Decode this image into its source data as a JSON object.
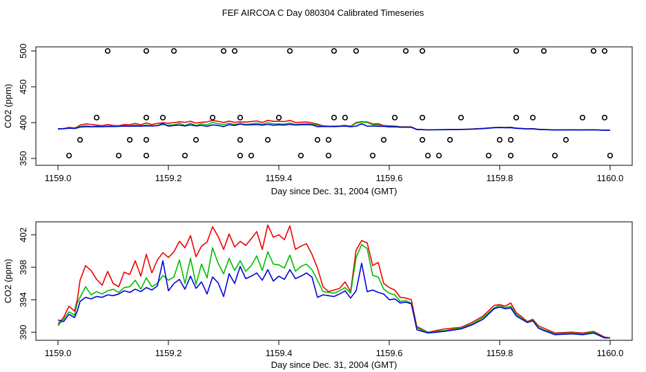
{
  "title": "FEF AIRCOA C  Day 080304  Calibrated Timeseries",
  "colors": {
    "red": "#ee0000",
    "green": "#00bb00",
    "blue": "#0000dd",
    "axis": "#000000"
  },
  "chart_data": [
    {
      "type": "scatter+line",
      "xlabel": "Day since Dec. 31, 2004 (GMT)",
      "ylabel": "CO2 (ppm)",
      "xlim": [
        1159.0,
        1160.0
      ],
      "ylim": [
        350,
        500
      ],
      "xticks": [
        1159.0,
        1159.2,
        1159.4,
        1159.6,
        1159.8,
        1160.0
      ],
      "xtick_labels": [
        "1159.0",
        "1159.2",
        "1159.4",
        "1159.6",
        "1159.8",
        "1160.0"
      ],
      "yticks": [
        350,
        400,
        450,
        500
      ],
      "ytick_labels": [
        "350",
        "400",
        "450",
        "500"
      ],
      "points": [
        [
          1159.09,
          500
        ],
        [
          1159.16,
          500
        ],
        [
          1159.21,
          500
        ],
        [
          1159.3,
          500
        ],
        [
          1159.32,
          500
        ],
        [
          1159.42,
          500
        ],
        [
          1159.5,
          500
        ],
        [
          1159.54,
          500
        ],
        [
          1159.63,
          500
        ],
        [
          1159.66,
          500
        ],
        [
          1159.83,
          500
        ],
        [
          1159.88,
          500
        ],
        [
          1159.97,
          500
        ],
        [
          1159.99,
          500
        ],
        [
          1159.07,
          407
        ],
        [
          1159.16,
          407
        ],
        [
          1159.19,
          407
        ],
        [
          1159.28,
          407
        ],
        [
          1159.33,
          407
        ],
        [
          1159.4,
          407
        ],
        [
          1159.5,
          407
        ],
        [
          1159.52,
          407
        ],
        [
          1159.61,
          407
        ],
        [
          1159.66,
          407
        ],
        [
          1159.73,
          407
        ],
        [
          1159.83,
          407
        ],
        [
          1159.86,
          407
        ],
        [
          1159.95,
          407
        ],
        [
          1159.99,
          407
        ],
        [
          1159.04,
          376
        ],
        [
          1159.13,
          376
        ],
        [
          1159.16,
          376
        ],
        [
          1159.25,
          376
        ],
        [
          1159.33,
          376
        ],
        [
          1159.38,
          376
        ],
        [
          1159.47,
          376
        ],
        [
          1159.49,
          376
        ],
        [
          1159.59,
          376
        ],
        [
          1159.66,
          376
        ],
        [
          1159.71,
          376
        ],
        [
          1159.8,
          376
        ],
        [
          1159.82,
          376
        ],
        [
          1159.92,
          376
        ],
        [
          1159.02,
          354
        ],
        [
          1159.11,
          354
        ],
        [
          1159.16,
          354
        ],
        [
          1159.23,
          354
        ],
        [
          1159.33,
          354
        ],
        [
          1159.35,
          354
        ],
        [
          1159.44,
          354
        ],
        [
          1159.49,
          354
        ],
        [
          1159.57,
          354
        ],
        [
          1159.67,
          354
        ],
        [
          1159.69,
          354
        ],
        [
          1159.78,
          354
        ],
        [
          1159.82,
          354
        ],
        [
          1159.9,
          354
        ],
        [
          1160.0,
          354
        ]
      ],
      "series_ref": "shared"
    },
    {
      "type": "line",
      "xlabel": "Day since Dec. 31, 2004 (GMT)",
      "ylabel": "CO2 (ppm)",
      "xlim": [
        1159.0,
        1160.0
      ],
      "ylim": [
        389.0,
        403.6
      ],
      "xticks": [
        1159.0,
        1159.2,
        1159.4,
        1159.6,
        1159.8,
        1160.0
      ],
      "xtick_labels": [
        "1159.0",
        "1159.2",
        "1159.4",
        "1159.6",
        "1159.8",
        "1160.0"
      ],
      "yticks": [
        390,
        394,
        398,
        402
      ],
      "ytick_labels": [
        "390",
        "394",
        "398",
        "402"
      ],
      "series_ref": "shared"
    }
  ],
  "series": [
    {
      "name": "red",
      "x": [
        1159.0,
        1159.01,
        1159.02,
        1159.03,
        1159.035,
        1159.04,
        1159.05,
        1159.06,
        1159.07,
        1159.08,
        1159.09,
        1159.1,
        1159.11,
        1159.12,
        1159.13,
        1159.14,
        1159.15,
        1159.16,
        1159.17,
        1159.18,
        1159.19,
        1159.2,
        1159.21,
        1159.22,
        1159.23,
        1159.24,
        1159.25,
        1159.26,
        1159.27,
        1159.28,
        1159.29,
        1159.3,
        1159.31,
        1159.32,
        1159.33,
        1159.34,
        1159.35,
        1159.36,
        1159.37,
        1159.38,
        1159.39,
        1159.4,
        1159.41,
        1159.42,
        1159.43,
        1159.44,
        1159.45,
        1159.46,
        1159.47,
        1159.48,
        1159.49,
        1159.5,
        1159.51,
        1159.52,
        1159.53,
        1159.54,
        1159.55,
        1159.56,
        1159.57,
        1159.58,
        1159.59,
        1159.6,
        1159.61,
        1159.62,
        1159.63,
        1159.64,
        1159.65,
        1159.67,
        1159.7,
        1159.73,
        1159.75,
        1159.77,
        1159.79,
        1159.8,
        1159.81,
        1159.82,
        1159.83,
        1159.84,
        1159.85,
        1159.86,
        1159.87,
        1159.88,
        1159.9,
        1159.93,
        1159.95,
        1159.97,
        1159.99,
        1160.0
      ],
      "y": [
        391.0,
        391.8,
        393.2,
        392.6,
        394.0,
        396.4,
        398.2,
        397.6,
        396.5,
        395.8,
        397.5,
        396.0,
        395.6,
        397.4,
        397.1,
        398.8,
        396.9,
        399.6,
        397.3,
        398.9,
        399.8,
        399.2,
        399.9,
        401.2,
        400.4,
        401.9,
        399.3,
        400.6,
        401.1,
        403.0,
        401.8,
        400.2,
        402.1,
        400.5,
        401.2,
        400.7,
        401.5,
        402.4,
        400.2,
        403.2,
        401.7,
        402.0,
        401.4,
        403.1,
        400.2,
        400.6,
        400.9,
        399.6,
        397.9,
        395.6,
        395.0,
        395.2,
        395.4,
        396.2,
        395.0,
        400.1,
        401.3,
        401.0,
        398.2,
        398.6,
        396.0,
        395.5,
        395.2,
        394.3,
        394.2,
        394.0,
        390.7,
        390.0,
        390.4,
        390.6,
        391.2,
        392.0,
        393.3,
        393.4,
        393.2,
        393.6,
        392.4,
        391.9,
        391.3,
        391.6,
        390.8,
        390.5,
        389.9,
        390.0,
        389.9,
        390.1,
        389.4,
        389.3
      ]
    },
    {
      "name": "green",
      "x": [
        1159.0,
        1159.01,
        1159.02,
        1159.03,
        1159.035,
        1159.04,
        1159.05,
        1159.06,
        1159.07,
        1159.08,
        1159.09,
        1159.1,
        1159.11,
        1159.12,
        1159.13,
        1159.14,
        1159.15,
        1159.16,
        1159.17,
        1159.18,
        1159.19,
        1159.2,
        1159.21,
        1159.22,
        1159.23,
        1159.24,
        1159.25,
        1159.26,
        1159.27,
        1159.28,
        1159.29,
        1159.3,
        1159.31,
        1159.32,
        1159.33,
        1159.34,
        1159.35,
        1159.36,
        1159.37,
        1159.38,
        1159.39,
        1159.4,
        1159.41,
        1159.42,
        1159.43,
        1159.44,
        1159.45,
        1159.46,
        1159.47,
        1159.48,
        1159.49,
        1159.5,
        1159.51,
        1159.52,
        1159.53,
        1159.54,
        1159.55,
        1159.56,
        1159.57,
        1159.58,
        1159.59,
        1159.6,
        1159.61,
        1159.62,
        1159.63,
        1159.64,
        1159.65,
        1159.67,
        1159.7,
        1159.73,
        1159.75,
        1159.77,
        1159.79,
        1159.8,
        1159.81,
        1159.82,
        1159.83,
        1159.84,
        1159.85,
        1159.86,
        1159.87,
        1159.88,
        1159.9,
        1159.93,
        1159.95,
        1159.97,
        1159.99,
        1160.0
      ],
      "y": [
        390.8,
        391.6,
        392.5,
        392.1,
        393.6,
        394.3,
        395.6,
        394.6,
        395.0,
        394.7,
        395.1,
        395.3,
        394.9,
        395.5,
        395.6,
        396.4,
        395.3,
        396.7,
        395.6,
        396.0,
        397.0,
        396.4,
        396.8,
        398.9,
        396.0,
        399.1,
        395.9,
        398.4,
        396.7,
        400.4,
        398.5,
        397.2,
        399.1,
        397.6,
        398.8,
        397.5,
        398.2,
        399.4,
        397.6,
        399.9,
        398.4,
        398.3,
        397.9,
        399.5,
        397.5,
        398.1,
        398.4,
        397.7,
        396.4,
        395.0,
        394.9,
        394.8,
        395.1,
        395.5,
        394.8,
        399.2,
        400.8,
        400.3,
        397.0,
        396.8,
        395.3,
        394.8,
        394.6,
        393.8,
        393.9,
        393.6,
        390.5,
        390.0,
        390.2,
        390.5,
        391.0,
        391.8,
        393.0,
        393.3,
        393.0,
        393.2,
        392.2,
        391.7,
        391.2,
        391.5,
        390.6,
        390.3,
        389.8,
        389.9,
        389.8,
        390.0,
        389.3,
        389.3
      ]
    },
    {
      "name": "blue",
      "x": [
        1159.0,
        1159.01,
        1159.02,
        1159.03,
        1159.035,
        1159.04,
        1159.05,
        1159.06,
        1159.07,
        1159.08,
        1159.09,
        1159.1,
        1159.11,
        1159.12,
        1159.13,
        1159.14,
        1159.15,
        1159.16,
        1159.17,
        1159.18,
        1159.19,
        1159.2,
        1159.21,
        1159.22,
        1159.23,
        1159.24,
        1159.25,
        1159.26,
        1159.27,
        1159.28,
        1159.29,
        1159.3,
        1159.31,
        1159.32,
        1159.33,
        1159.34,
        1159.35,
        1159.36,
        1159.37,
        1159.38,
        1159.39,
        1159.4,
        1159.41,
        1159.42,
        1159.43,
        1159.44,
        1159.45,
        1159.46,
        1159.47,
        1159.48,
        1159.49,
        1159.5,
        1159.51,
        1159.52,
        1159.53,
        1159.54,
        1159.55,
        1159.56,
        1159.57,
        1159.58,
        1159.59,
        1159.6,
        1159.61,
        1159.62,
        1159.63,
        1159.64,
        1159.65,
        1159.67,
        1159.7,
        1159.73,
        1159.75,
        1159.77,
        1159.79,
        1159.8,
        1159.81,
        1159.82,
        1159.83,
        1159.84,
        1159.85,
        1159.86,
        1159.87,
        1159.88,
        1159.9,
        1159.93,
        1159.95,
        1159.97,
        1159.99,
        1160.0
      ],
      "y": [
        391.5,
        391.3,
        392.2,
        391.8,
        392.6,
        393.8,
        394.3,
        394.1,
        394.4,
        394.3,
        394.6,
        394.5,
        394.7,
        395.1,
        394.9,
        395.3,
        395.0,
        395.5,
        395.2,
        395.7,
        398.8,
        395.1,
        396.0,
        396.5,
        395.3,
        396.9,
        395.4,
        396.2,
        394.7,
        396.8,
        396.1,
        394.4,
        397.2,
        396.0,
        398.1,
        396.6,
        396.9,
        397.3,
        396.4,
        397.7,
        396.3,
        396.9,
        396.5,
        397.7,
        396.6,
        396.9,
        397.3,
        396.8,
        394.3,
        394.6,
        394.5,
        394.4,
        394.7,
        395.1,
        394.2,
        395.1,
        398.5,
        395.0,
        395.2,
        394.9,
        394.7,
        394.0,
        394.1,
        393.6,
        393.7,
        393.5,
        390.3,
        389.9,
        390.1,
        390.4,
        390.9,
        391.6,
        392.9,
        393.1,
        392.9,
        393.0,
        392.0,
        391.6,
        391.2,
        391.4,
        390.5,
        390.2,
        389.7,
        389.8,
        389.7,
        389.9,
        389.3,
        389.3
      ]
    }
  ]
}
